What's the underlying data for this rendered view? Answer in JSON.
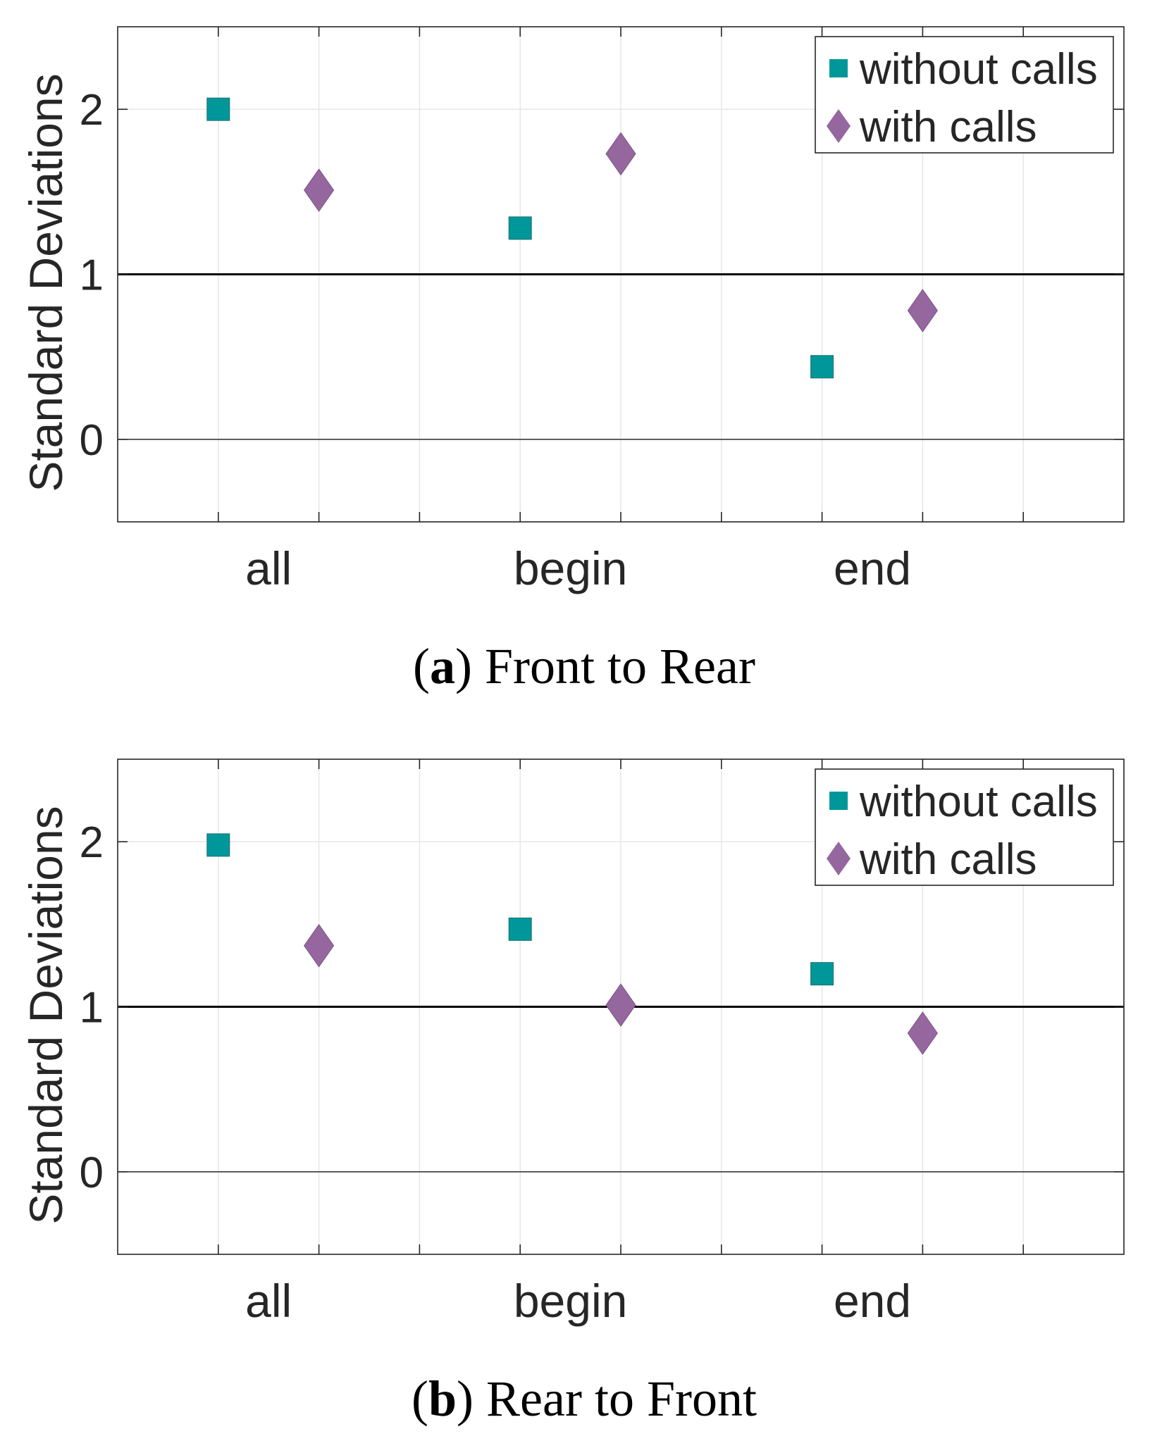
{
  "colors": {
    "without_calls": "#00979a",
    "with_calls": "#95679e",
    "axis": "#262626",
    "grid": "#e6e6e6",
    "reference_line": "#000000"
  },
  "chart_data": [
    {
      "panel": "a",
      "type": "scatter",
      "caption_letter": "a",
      "caption_text": "Front to Rear",
      "ylabel": "Standard Deviations",
      "ylim": [
        -0.5,
        2.5
      ],
      "yticks": [
        0,
        1,
        2
      ],
      "xlim": [
        0,
        10
      ],
      "categories": [
        {
          "label": "all",
          "x": 1.5
        },
        {
          "label": "begin",
          "x": 4.5
        },
        {
          "label": "end",
          "x": 7.5
        }
      ],
      "reference_lines": [
        1
      ],
      "grid": true,
      "legend_position": "top-right",
      "series": [
        {
          "name": "without calls",
          "marker": "square",
          "color": "#00979a",
          "points": [
            {
              "x": 1,
              "y": 2.0
            },
            {
              "x": 4,
              "y": 1.28
            },
            {
              "x": 7,
              "y": 0.44
            }
          ]
        },
        {
          "name": "with calls",
          "marker": "diamond",
          "color": "#95679e",
          "points": [
            {
              "x": 2,
              "y": 1.51
            },
            {
              "x": 5,
              "y": 1.73
            },
            {
              "x": 8,
              "y": 0.78
            }
          ]
        }
      ]
    },
    {
      "panel": "b",
      "type": "scatter",
      "caption_letter": "b",
      "caption_text": "Rear to Front",
      "ylabel": "Standard Deviations",
      "ylim": [
        -0.5,
        2.5
      ],
      "yticks": [
        0,
        1,
        2
      ],
      "xlim": [
        0,
        10
      ],
      "categories": [
        {
          "label": "all",
          "x": 1.5
        },
        {
          "label": "begin",
          "x": 4.5
        },
        {
          "label": "end",
          "x": 7.5
        }
      ],
      "reference_lines": [
        1
      ],
      "grid": true,
      "legend_position": "top-right",
      "series": [
        {
          "name": "without calls",
          "marker": "square",
          "color": "#00979a",
          "points": [
            {
              "x": 1,
              "y": 1.98
            },
            {
              "x": 4,
              "y": 1.47
            },
            {
              "x": 7,
              "y": 1.2
            }
          ]
        },
        {
          "name": "with calls",
          "marker": "diamond",
          "color": "#95679e",
          "points": [
            {
              "x": 2,
              "y": 1.37
            },
            {
              "x": 5,
              "y": 1.01
            },
            {
              "x": 8,
              "y": 0.84
            }
          ]
        }
      ]
    }
  ]
}
